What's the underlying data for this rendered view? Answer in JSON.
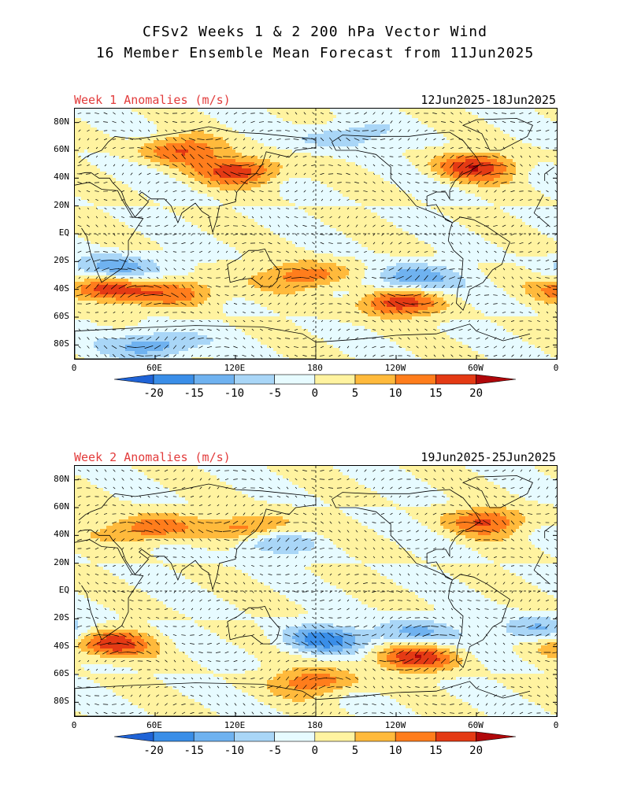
{
  "header": {
    "line1": "CFSv2 Weeks 1 & 2 200 hPa Vector Wind",
    "line2": "16 Member Ensemble Mean Forecast from 11Jun2025"
  },
  "panels": [
    {
      "title": "Week 1 Anomalies (m/s)",
      "dates": "12Jun2025-18Jun2025",
      "seed": 7
    },
    {
      "title": "Week 2 Anomalies (m/s)",
      "dates": "19Jun2025-25Jun2025",
      "seed": 13
    }
  ],
  "axes": {
    "lat_ticks": [
      "80N",
      "60N",
      "40N",
      "20N",
      "EQ",
      "20S",
      "40S",
      "60S",
      "80S"
    ],
    "lon_ticks": [
      "0",
      "60E",
      "120E",
      "180",
      "120W",
      "60W",
      "0"
    ]
  },
  "colorbar": {
    "labels": [
      "-20",
      "-15",
      "-10",
      "-5",
      "0",
      "5",
      "10",
      "15",
      "20"
    ],
    "colors": [
      "#1f63d6",
      "#3a8ee8",
      "#6fb2f0",
      "#a9d6f7",
      "#e7fbff",
      "#fff3a0",
      "#ffba3c",
      "#ff7d1c",
      "#e43a14",
      "#b0070a"
    ]
  },
  "chart_data": [
    {
      "type": "heatmap",
      "title": "Week 1 Anomalies (m/s)",
      "subtitle": "12Jun2025-18Jun2025",
      "units": "m/s",
      "x_range": [
        "0",
        "0"
      ],
      "y_range": [
        "90S",
        "90N"
      ],
      "color_levels": [
        -20,
        -15,
        -10,
        -5,
        0,
        5,
        10,
        15,
        20
      ],
      "features": [
        {
          "lon": 80,
          "lat": 60,
          "value": 15
        },
        {
          "lon": 125,
          "lat": 45,
          "value": 18
        },
        {
          "lon": 300,
          "lat": 48,
          "value": 18
        },
        {
          "lon": 20,
          "lat": -40,
          "value": 18
        },
        {
          "lon": 80,
          "lat": -42,
          "value": 14
        },
        {
          "lon": 175,
          "lat": -30,
          "value": 15
        },
        {
          "lon": 240,
          "lat": -50,
          "value": 18
        },
        {
          "lon": 30,
          "lat": -25,
          "value": -15
        },
        {
          "lon": 250,
          "lat": -32,
          "value": -15
        },
        {
          "lon": 60,
          "lat": -80,
          "value": -15
        },
        {
          "lon": 200,
          "lat": 70,
          "value": -10
        }
      ]
    },
    {
      "type": "heatmap",
      "title": "Week 2 Anomalies (m/s)",
      "subtitle": "19Jun2025-25Jun2025",
      "units": "m/s",
      "x_range": [
        "0",
        "0"
      ],
      "y_range": [
        "90S",
        "90N"
      ],
      "color_levels": [
        -20,
        -15,
        -10,
        -5,
        0,
        5,
        10,
        15,
        20
      ],
      "features": [
        {
          "lon": 55,
          "lat": 45,
          "value": 16
        },
        {
          "lon": 135,
          "lat": 45,
          "value": 16
        },
        {
          "lon": 310,
          "lat": 50,
          "value": 15
        },
        {
          "lon": 25,
          "lat": -38,
          "value": 18
        },
        {
          "lon": 255,
          "lat": -48,
          "value": 18
        },
        {
          "lon": 180,
          "lat": -65,
          "value": 14
        },
        {
          "lon": 185,
          "lat": -35,
          "value": -16
        },
        {
          "lon": 250,
          "lat": -30,
          "value": -12
        },
        {
          "lon": 345,
          "lat": -28,
          "value": -12
        },
        {
          "lon": 145,
          "lat": 36,
          "value": -12
        }
      ]
    }
  ]
}
